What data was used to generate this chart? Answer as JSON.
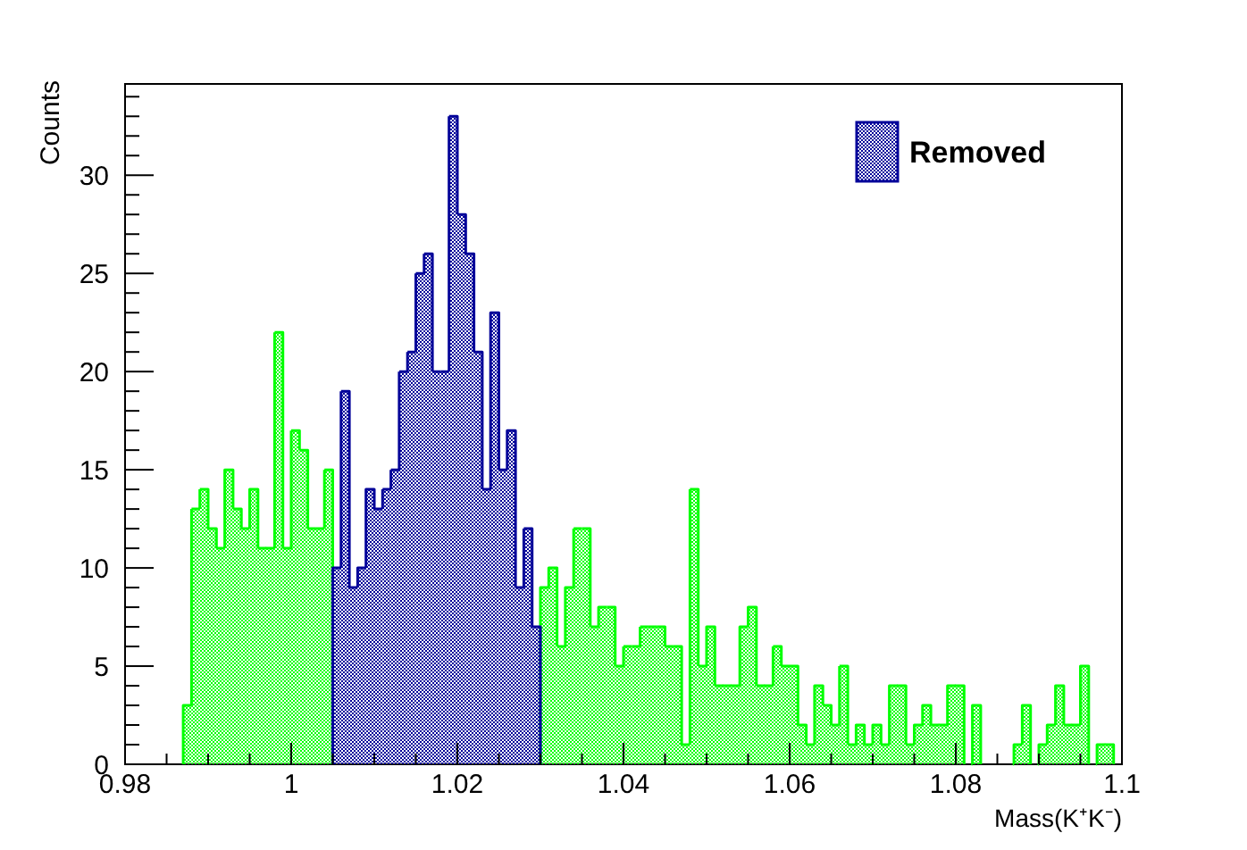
{
  "chart_data": {
    "type": "histogram",
    "xlabel": "Mass(K⁺K⁻)",
    "ylabel": "Counts",
    "bins": [
      0.98,
      0.981,
      0.982,
      0.983,
      0.984,
      0.985,
      0.986,
      0.987,
      0.988,
      0.989,
      0.99,
      0.991,
      0.992,
      0.993,
      0.994,
      0.995,
      0.996,
      0.997,
      0.998,
      0.999,
      1,
      1.001,
      1.002,
      1.003,
      1.004,
      1.005,
      1.006,
      1.007,
      1.008,
      1.009,
      1.01,
      1.011,
      1.012,
      1.013,
      1.014,
      1.015,
      1.016,
      1.017,
      1.018,
      1.019,
      1.02,
      1.021,
      1.022,
      1.023,
      1.024,
      1.025,
      1.026,
      1.027,
      1.028,
      1.029,
      1.03,
      1.031,
      1.032,
      1.033,
      1.034,
      1.035,
      1.036,
      1.037,
      1.038,
      1.039,
      1.04,
      1.041,
      1.042,
      1.043,
      1.044,
      1.045,
      1.046,
      1.047,
      1.048,
      1.049,
      1.05,
      1.051,
      1.052,
      1.053,
      1.054,
      1.055,
      1.056,
      1.057,
      1.058,
      1.059,
      1.06,
      1.061,
      1.062,
      1.063,
      1.064,
      1.065,
      1.066,
      1.067,
      1.068,
      1.069,
      1.07,
      1.071,
      1.072,
      1.073,
      1.074,
      1.075,
      1.076,
      1.077,
      1.078,
      1.079,
      1.08,
      1.081,
      1.082,
      1.083,
      1.084,
      1.085,
      1.086,
      1.087,
      1.088,
      1.089,
      1.09,
      1.091,
      1.092,
      1.093,
      1.094,
      1.095,
      1.096,
      1.097,
      1.098,
      1.099,
      1.1
    ],
    "series": [
      {
        "color": "#00ff00",
        "values": [
          0,
          0,
          0,
          0,
          0,
          0,
          0,
          3,
          13,
          14,
          12,
          11,
          15,
          13,
          12,
          14,
          11,
          11,
          22,
          11,
          17,
          16,
          12,
          12,
          15,
          null,
          null,
          null,
          null,
          null,
          null,
          null,
          null,
          null,
          null,
          null,
          null,
          null,
          null,
          null,
          null,
          null,
          null,
          null,
          null,
          null,
          null,
          null,
          null,
          null,
          9,
          10,
          6,
          9,
          12,
          12,
          7,
          8,
          8,
          5,
          6,
          6,
          7,
          7,
          7,
          6,
          6,
          1,
          14,
          5,
          7,
          4,
          4,
          4,
          7,
          8,
          4,
          4,
          6,
          5,
          5,
          2,
          1,
          4,
          3,
          2,
          5,
          1,
          2,
          1,
          2,
          1,
          4,
          4,
          1,
          2,
          3,
          2,
          2,
          4,
          4,
          0,
          3,
          0,
          0,
          0,
          0,
          1,
          3,
          0,
          1,
          2,
          4,
          2,
          2,
          5,
          0,
          1,
          1,
          0
        ]
      },
      {
        "name": "Removed",
        "color": "#000099",
        "values": [
          0,
          0,
          0,
          0,
          0,
          0,
          0,
          0,
          0,
          0,
          0,
          0,
          0,
          0,
          0,
          0,
          0,
          0,
          0,
          0,
          0,
          0,
          0,
          0,
          0,
          10,
          19,
          9,
          10,
          14,
          13,
          14,
          15,
          20,
          21,
          25,
          26,
          20,
          20,
          33,
          28,
          26,
          21,
          14,
          23,
          15,
          17,
          9,
          12,
          7,
          0,
          0,
          0,
          0,
          0,
          0,
          0,
          0,
          0,
          0,
          0,
          0,
          0,
          0,
          0,
          0,
          0,
          0,
          0,
          0,
          0,
          0,
          0,
          0,
          0,
          0,
          0,
          0,
          0,
          0,
          0,
          0,
          0,
          0,
          0,
          0,
          0,
          0,
          0,
          0,
          0,
          0,
          0,
          0,
          0,
          0,
          0,
          0,
          0,
          0,
          0,
          0,
          0,
          0,
          0,
          0,
          0,
          0,
          0,
          0,
          0,
          0,
          0,
          0,
          0,
          0,
          0,
          0,
          0,
          0
        ]
      }
    ],
    "xlim": [
      0.98,
      1.1
    ],
    "ylim": [
      0,
      34.65
    ],
    "xticks": [
      0.98,
      {
        "value": 0.985,
        "label": null
      },
      {
        "value": 0.99,
        "label": null
      },
      {
        "value": 0.995,
        "label": null
      },
      1,
      {
        "value": 1.005,
        "label": null
      },
      {
        "value": 1.01,
        "label": null
      },
      {
        "value": 1.015,
        "label": null
      },
      1.02,
      {
        "value": 1.025,
        "label": null
      },
      {
        "value": 1.03,
        "label": null
      },
      {
        "value": 1.035,
        "label": null
      },
      1.04,
      {
        "value": 1.045,
        "label": null
      },
      {
        "value": 1.05,
        "label": null
      },
      {
        "value": 1.055,
        "label": null
      },
      1.06,
      {
        "value": 1.065,
        "label": null
      },
      {
        "value": 1.07,
        "label": null
      },
      {
        "value": 1.075,
        "label": null
      },
      1.08,
      {
        "value": 1.085,
        "label": null
      },
      {
        "value": 1.09,
        "label": null
      },
      {
        "value": 1.095,
        "label": null
      },
      1.1
    ],
    "yticks": [
      0,
      {
        "value": 1,
        "label": null
      },
      {
        "value": 2,
        "label": null
      },
      {
        "value": 3,
        "label": null
      },
      {
        "value": 4,
        "label": null
      },
      5,
      {
        "value": 6,
        "label": null
      },
      {
        "value": 7,
        "label": null
      },
      {
        "value": 8,
        "label": null
      },
      {
        "value": 9,
        "label": null
      },
      10,
      {
        "value": 11,
        "label": null
      },
      {
        "value": 12,
        "label": null
      },
      {
        "value": 13,
        "label": null
      },
      {
        "value": 14,
        "label": null
      },
      15,
      {
        "value": 16,
        "label": null
      },
      {
        "value": 17,
        "label": null
      },
      {
        "value": 18,
        "label": null
      },
      {
        "value": 19,
        "label": null
      },
      20,
      {
        "value": 21,
        "label": null
      },
      {
        "value": 22,
        "label": null
      },
      {
        "value": 23,
        "label": null
      },
      {
        "value": 24,
        "label": null
      },
      25,
      {
        "value": 26,
        "label": null
      },
      {
        "value": 27,
        "label": null
      },
      {
        "value": 28,
        "label": null
      },
      {
        "value": 29,
        "label": null
      },
      30,
      {
        "value": 31,
        "label": null
      },
      {
        "value": 32,
        "label": null
      },
      {
        "value": 33,
        "label": null
      },
      {
        "value": 34,
        "label": null
      }
    ],
    "legend": "top right"
  }
}
